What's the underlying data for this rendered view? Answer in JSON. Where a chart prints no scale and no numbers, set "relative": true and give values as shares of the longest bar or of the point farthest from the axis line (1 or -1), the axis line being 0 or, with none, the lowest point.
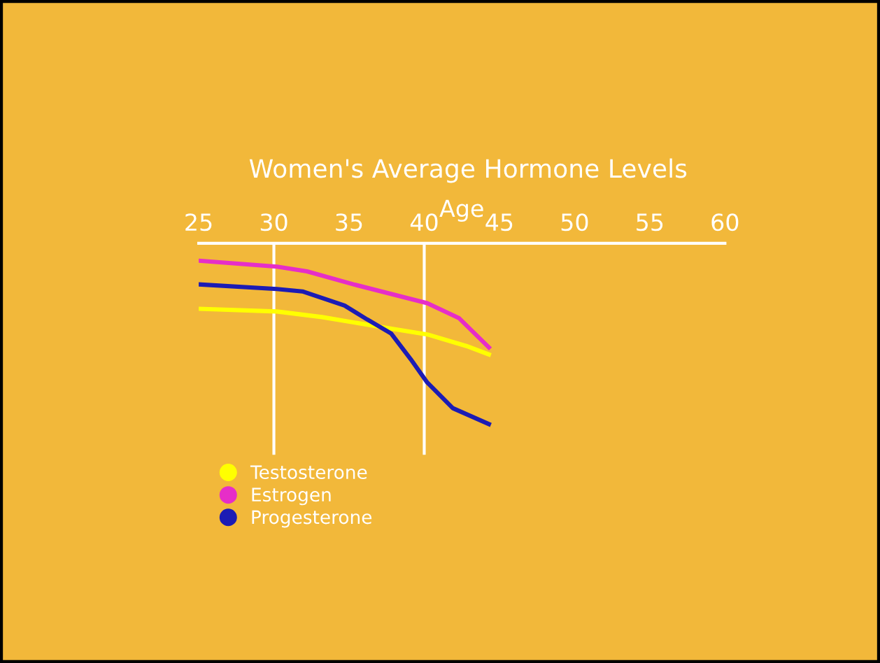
{
  "chart_data": {
    "type": "line",
    "title": "Women's Average Hormone Levels",
    "xlabel": "Age",
    "relative": true,
    "xlim": [
      25,
      60
    ],
    "xticks": [
      25,
      30,
      35,
      40,
      45,
      50,
      55,
      60
    ],
    "grid": false,
    "legend": "bottom left",
    "marker": "none",
    "line_style": "solid",
    "ref_lines": [
      {
        "axis": "x",
        "value": 30,
        "color": "#ffffff"
      },
      {
        "axis": "x",
        "value": 40,
        "color": "#ffffff"
      }
    ],
    "series": [
      {
        "name": "Testosterone",
        "color": "#ffff00",
        "x": [
          25,
          30.2,
          33.2,
          36.9,
          40.2,
          42.8,
          44.3
        ],
        "values": [
          -0.362,
          -0.377,
          -0.408,
          -0.46,
          -0.504,
          -0.568,
          -0.615
        ]
      },
      {
        "name": "Estrogen",
        "color": "#e62ec8",
        "x": [
          25,
          30.2,
          32.2,
          35.3,
          40.2,
          42.3,
          44.3
        ],
        "values": [
          -0.096,
          -0.129,
          -0.155,
          -0.227,
          -0.331,
          -0.413,
          -0.576
        ]
      },
      {
        "name": "Progesterone",
        "color": "#1c1cb4",
        "x": [
          25,
          30.2,
          31.9,
          34.7,
          36.2,
          37.8,
          39.1,
          40.2,
          41.9,
          44.3
        ],
        "values": [
          -0.227,
          -0.253,
          -0.266,
          -0.344,
          -0.421,
          -0.499,
          -0.641,
          -0.77,
          -0.912,
          -1.0
        ]
      }
    ]
  }
}
